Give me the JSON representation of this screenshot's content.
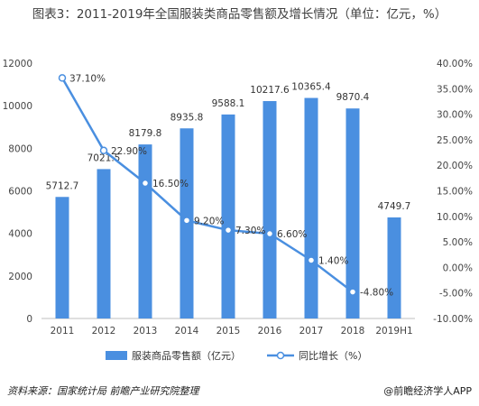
{
  "title": "图表3：2011-2019年全国服装类商品零售额及增长情况（单位：亿元，%）",
  "source": "资料来源：国家统计局 前瞻产业研究院整理",
  "brand": "@前瞻经济学人APP",
  "colors": {
    "bar": "#4a8fe0",
    "line": "#4a8fe0"
  },
  "chart_data": {
    "type": "bar",
    "categories": [
      "2011",
      "2012",
      "2013",
      "2014",
      "2015",
      "2016",
      "2017",
      "2018",
      "2019H1"
    ],
    "series": [
      {
        "name": "服装商品零售额（亿元）",
        "type": "bar",
        "axis": "left",
        "values": [
          5712.7,
          7021.5,
          8179.8,
          8935.8,
          9588.1,
          10217.6,
          10365.4,
          9870.4,
          4749.7
        ],
        "labels": [
          "5712.7",
          "7021.5",
          "8179.8",
          "8935.8",
          "9588.1",
          "10217.6",
          "10365.4",
          "9870.4",
          "4749.7"
        ]
      },
      {
        "name": "同比增长（%）",
        "type": "line",
        "axis": "right",
        "values": [
          37.1,
          22.9,
          16.5,
          9.2,
          7.3,
          6.6,
          1.4,
          -4.8,
          null
        ],
        "labels": [
          "37.10%",
          "22.90%",
          "16.50%",
          "9.20%",
          "7.30%",
          "6.60%",
          "1.40%",
          "-4.80%",
          ""
        ]
      }
    ],
    "y_left": {
      "min": 0,
      "max": 12000,
      "ticks": [
        "0",
        "2000",
        "4000",
        "6000",
        "8000",
        "10000",
        "12000"
      ]
    },
    "y_right": {
      "min": -10,
      "max": 40,
      "ticks": [
        "-10.00%",
        "-5.00%",
        "0.00%",
        "5.00%",
        "10.00%",
        "15.00%",
        "20.00%",
        "25.00%",
        "30.00%",
        "35.00%",
        "40.00%"
      ]
    },
    "grid": false,
    "legend_position": "bottom"
  }
}
